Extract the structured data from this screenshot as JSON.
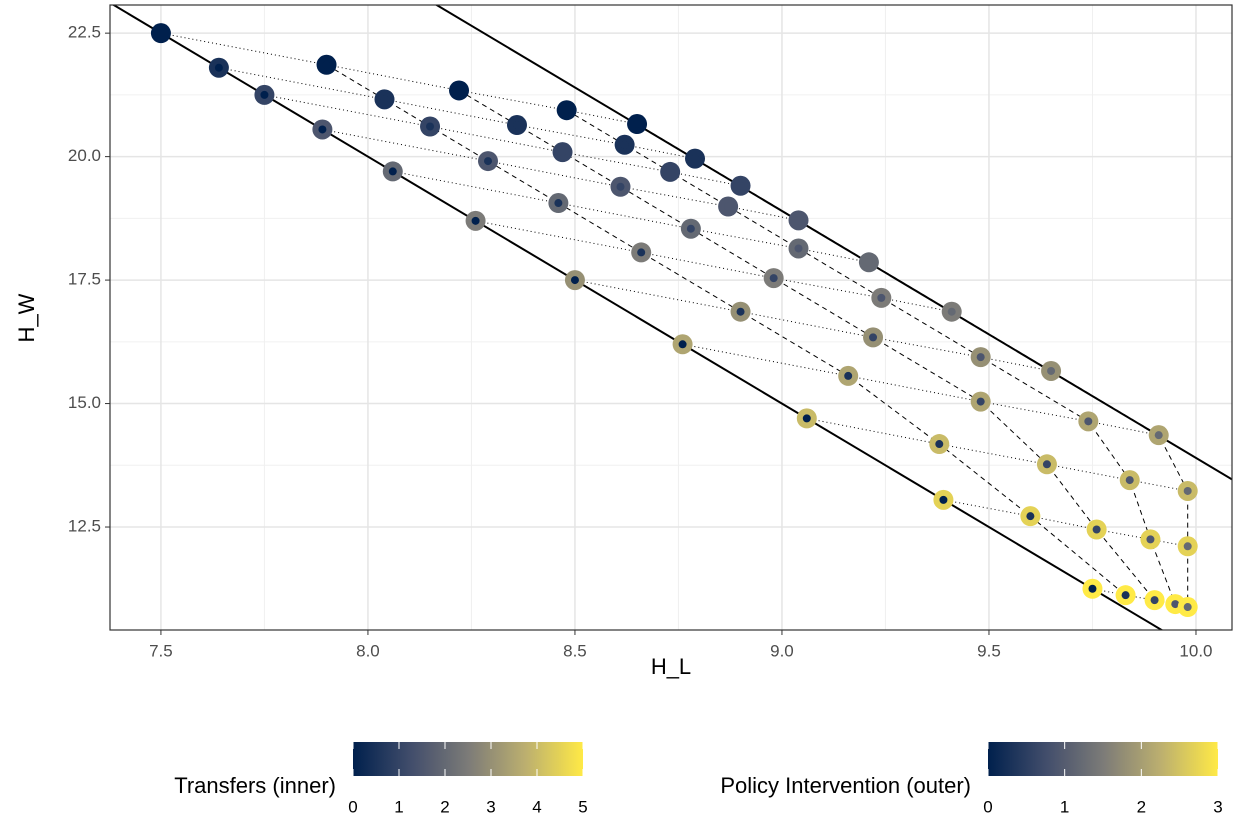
{
  "chart_data": {
    "type": "scatter",
    "xlabel": "H_L",
    "ylabel": "H_W",
    "xlim": [
      7.377,
      10.087
    ],
    "ylim": [
      10.415,
      23.07
    ],
    "xticks": [
      {
        "value": 7.5,
        "label": "7.5"
      },
      {
        "value": 8,
        "label": "8.0"
      },
      {
        "value": 8.5,
        "label": "8.5"
      },
      {
        "value": 9,
        "label": "9.0"
      },
      {
        "value": 9.5,
        "label": "9.5"
      },
      {
        "value": 10,
        "label": "10.0"
      }
    ],
    "yticks": [
      {
        "value": 12.5,
        "label": "12.5"
      },
      {
        "value": 15,
        "label": "15.0"
      },
      {
        "value": 17.5,
        "label": "17.5"
      },
      {
        "value": 20,
        "label": "20.0"
      },
      {
        "value": 22.5,
        "label": "22.5"
      }
    ],
    "grid": true,
    "ref_lines": [
      {
        "intercept": 60,
        "slope": -5
      },
      {
        "intercept": 63.9,
        "slope": -5
      }
    ],
    "series": [
      {
        "x": [
          7.5,
          7.9,
          8.22,
          8.48,
          8.65
        ],
        "y": [
          22.5,
          21.86,
          21.34,
          20.94,
          20.66
        ],
        "inner": [
          0,
          0,
          0,
          0,
          0
        ],
        "outer": [
          0,
          0,
          0,
          0,
          0
        ]
      },
      {
        "x": [
          7.64,
          8.04,
          8.36,
          8.62,
          8.79
        ],
        "y": [
          21.8,
          21.16,
          20.64,
          20.24,
          19.96
        ],
        "inner": [
          0,
          0.5,
          0.5,
          0.5,
          0.5
        ],
        "outer": [
          0.3,
          0.3,
          0.3,
          0.3,
          0.3
        ]
      },
      {
        "x": [
          7.75,
          8.15,
          8.47,
          8.73,
          8.9
        ],
        "y": [
          21.25,
          20.61,
          20.09,
          19.69,
          19.41
        ],
        "inner": [
          0,
          0.5,
          1,
          1,
          1
        ],
        "outer": [
          0.6,
          0.6,
          0.6,
          0.6,
          0.6
        ]
      },
      {
        "x": [
          7.89,
          8.29,
          8.61,
          8.87,
          9.04
        ],
        "y": [
          20.55,
          19.91,
          19.39,
          18.99,
          18.71
        ],
        "inner": [
          0,
          0.5,
          1,
          1.5,
          1.5
        ],
        "outer": [
          0.9,
          0.9,
          0.9,
          0.9,
          0.9
        ]
      },
      {
        "x": [
          8.06,
          8.46,
          8.78,
          9.04,
          9.21
        ],
        "y": [
          19.7,
          19.06,
          18.54,
          18.14,
          17.86
        ],
        "inner": [
          0,
          0.5,
          1,
          1.5,
          2
        ],
        "outer": [
          1.2,
          1.2,
          1.2,
          1.2,
          1.2
        ]
      },
      {
        "x": [
          8.26,
          8.66,
          8.98,
          9.24,
          9.41
        ],
        "y": [
          18.7,
          18.06,
          17.54,
          17.14,
          16.86
        ],
        "inner": [
          0,
          0.5,
          1,
          1.5,
          2
        ],
        "outer": [
          1.5,
          1.5,
          1.5,
          1.5,
          1.5
        ]
      },
      {
        "x": [
          8.5,
          8.9,
          9.22,
          9.48,
          9.65
        ],
        "y": [
          17.5,
          16.86,
          16.34,
          15.94,
          15.66
        ],
        "inner": [
          0,
          0.5,
          1,
          1.5,
          2
        ],
        "outer": [
          1.8,
          1.8,
          1.8,
          1.8,
          1.8
        ]
      },
      {
        "x": [
          8.76,
          9.16,
          9.48,
          9.74,
          9.91
        ],
        "y": [
          16.2,
          15.56,
          15.04,
          14.64,
          14.36
        ],
        "inner": [
          0,
          0.5,
          1,
          1.5,
          2
        ],
        "outer": [
          2.1,
          2.1,
          2.1,
          2.1,
          2.1
        ]
      },
      {
        "x": [
          9.06,
          9.38,
          9.64,
          9.84,
          9.98
        ],
        "y": [
          14.7,
          14.18,
          13.77,
          13.45,
          13.23
        ],
        "inner": [
          0,
          0.5,
          1,
          1.5,
          2
        ],
        "outer": [
          2.4,
          2.4,
          2.4,
          2.4,
          2.4
        ]
      },
      {
        "x": [
          9.39,
          9.6,
          9.76,
          9.89,
          9.98
        ],
        "y": [
          13.05,
          12.72,
          12.45,
          12.25,
          12.11
        ],
        "inner": [
          0,
          0.5,
          1,
          1.5,
          2
        ],
        "outer": [
          2.7,
          2.7,
          2.7,
          2.7,
          2.7
        ]
      },
      {
        "x": [
          9.75,
          9.83,
          9.9,
          9.95,
          9.98
        ],
        "y": [
          11.25,
          11.12,
          11.02,
          10.94,
          10.88
        ],
        "inner": [
          0,
          0.5,
          1,
          1.5,
          2
        ],
        "outer": [
          3,
          3,
          3,
          3,
          3
        ]
      }
    ],
    "color_legends": [
      {
        "title": "Transfers (inner)",
        "lim": [
          0,
          5
        ],
        "ticks": [
          0,
          1,
          2,
          3,
          4,
          5
        ],
        "channel": "inner"
      },
      {
        "title": "Policy Intervention (outer)",
        "lim": [
          0,
          3
        ],
        "ticks": [
          0,
          1,
          2,
          3
        ],
        "channel": "outer"
      }
    ]
  }
}
